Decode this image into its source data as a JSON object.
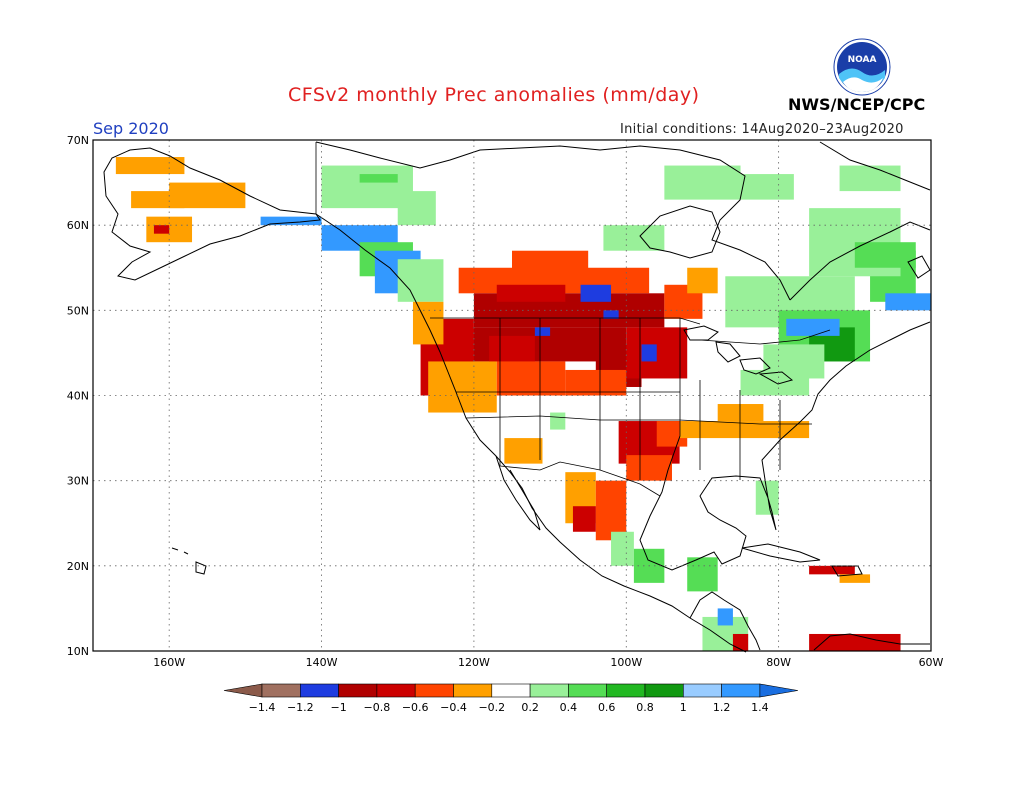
{
  "title": "CFSv2 monthly Prec anomalies (mm/day)",
  "forecast_month": "Sep 2020",
  "initial_conditions": "Initial conditions: 14Aug2020–23Aug2020",
  "agency": "NWS/NCEP/CPC",
  "logo_text": "NOAA",
  "map": {
    "lon_range": [
      -170,
      -60
    ],
    "lat_range": [
      10,
      70
    ],
    "lat_labels": [
      "70N",
      "60N",
      "50N",
      "40N",
      "30N",
      "20N",
      "10N"
    ],
    "lon_labels": [
      "160W",
      "140W",
      "120W",
      "100W",
      "80W",
      "60W"
    ]
  },
  "legend": {
    "labels": [
      "−1.4",
      "−1.2",
      "−1",
      "−0.8",
      "−0.6",
      "−0.4",
      "−0.2",
      "0.2",
      "0.4",
      "0.6",
      "0.8",
      "1",
      "1.2",
      "1.4"
    ],
    "colors": [
      "#8b5a4a",
      "#a07060",
      "#1e3ce0",
      "#b00000",
      "#cc0000",
      "#ff4400",
      "#ffa000",
      "#ffffff",
      "#99f099",
      "#55dd55",
      "#22b822",
      "#119911",
      "#99ccff",
      "#3399ff",
      "#1a6ee0"
    ]
  },
  "colors": {
    "strong_dry": "#b00000",
    "dry": "#cc0000",
    "moderate_dry": "#ff4400",
    "weak_dry": "#ffa000",
    "weak_wet": "#99f099",
    "wet": "#55dd55",
    "very_wet": "#22b822",
    "strong_wet": "#119911",
    "wettest": "#3399ff",
    "extreme_dry_blue": "#1e3ce0"
  }
}
